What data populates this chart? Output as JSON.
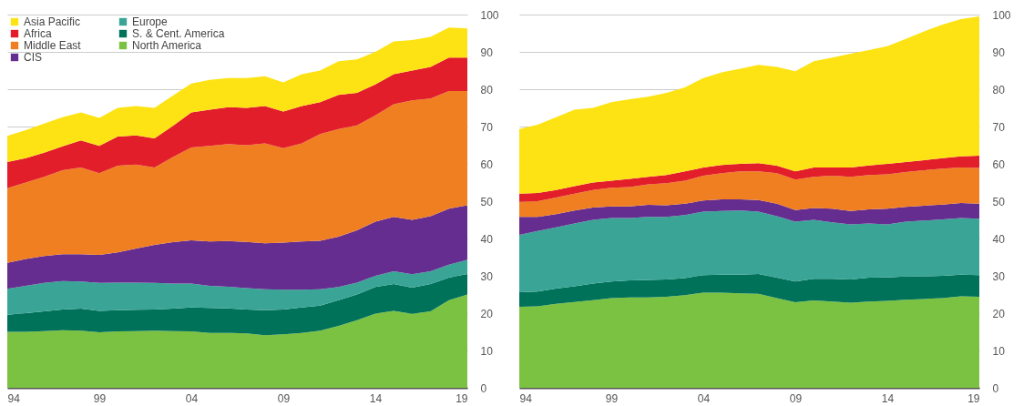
{
  "chart_data": [
    {
      "type": "area",
      "stacked": true,
      "x": [
        1994,
        1995,
        1996,
        1997,
        1998,
        1999,
        2000,
        2001,
        2002,
        2003,
        2004,
        2005,
        2006,
        2007,
        2008,
        2009,
        2010,
        2011,
        2012,
        2013,
        2014,
        2015,
        2016,
        2017,
        2018,
        2019
      ],
      "xlim": [
        1994,
        2019
      ],
      "xticks": [
        {
          "value": 1994,
          "label": "94"
        },
        {
          "value": 1999,
          "label": "99"
        },
        {
          "value": 2004,
          "label": "04"
        },
        {
          "value": 2009,
          "label": "09"
        },
        {
          "value": 2014,
          "label": "14"
        },
        {
          "value": 2019,
          "label": "19"
        }
      ],
      "ylim": [
        0,
        100
      ],
      "yticks": [
        0,
        10,
        20,
        30,
        40,
        50,
        60,
        70,
        80,
        90,
        100
      ],
      "grid": "y",
      "legend": "top left",
      "series": [
        {
          "name": "North America",
          "color": "#7cc242",
          "values": [
            15,
            15,
            15.2,
            15.4,
            15.3,
            14.9,
            15.1,
            15.2,
            15.3,
            15.2,
            15.1,
            14.7,
            14.7,
            14.6,
            14.1,
            14.3,
            14.7,
            15.3,
            16.6,
            18.1,
            19.9,
            20.6,
            19.8,
            20.5,
            23.5,
            25
          ]
        },
        {
          "name": "S. & Cent. America",
          "color": "#00725a",
          "values": [
            4.6,
            5.0,
            5.3,
            5.6,
            5.9,
            5.7,
            5.7,
            5.7,
            5.7,
            6.0,
            6.4,
            6.7,
            6.6,
            6.4,
            6.7,
            6.7,
            6.8,
            6.7,
            6.9,
            6.9,
            7.1,
            7.2,
            7.0,
            7.3,
            6.0,
            5.5
          ]
        },
        {
          "name": "Europe",
          "color": "#3aa597",
          "values": [
            6.9,
            7.3,
            7.6,
            7.6,
            7.3,
            7.5,
            7.4,
            7.3,
            7.1,
            6.7,
            6.4,
            5.9,
            5.8,
            5.7,
            5.6,
            5.3,
            4.8,
            4.4,
            3.5,
            3.2,
            3.0,
            3.4,
            3.6,
            3.4,
            3.5,
            3.8
          ]
        },
        {
          "name": "CIS",
          "color": "#662d91",
          "values": [
            7.0,
            7.2,
            7.2,
            7.2,
            7.3,
            7.5,
            8.1,
            9.1,
            10.2,
            11.1,
            11.6,
            11.9,
            12.2,
            12.4,
            12.3,
            12.6,
            12.9,
            13.0,
            13.5,
            14.0,
            14.5,
            14.6,
            14.6,
            14.8,
            15.0,
            14.6
          ]
        },
        {
          "name": "Middle East",
          "color": "#f07f22",
          "values": [
            20.0,
            20.5,
            21.2,
            22.5,
            23.2,
            21.9,
            23.2,
            22.5,
            20.7,
            22.8,
            24.9,
            25.6,
            26.0,
            25.9,
            26.8,
            25.3,
            26.3,
            28.6,
            28.8,
            28.1,
            28.5,
            30.2,
            32.0,
            31.5,
            31.5,
            30.6
          ]
        },
        {
          "name": "Africa",
          "color": "#e31e2b",
          "values": [
            7.0,
            6.5,
            6.5,
            6.4,
            7.3,
            7.3,
            7.8,
            7.8,
            7.8,
            8.4,
            9.4,
            9.7,
            9.9,
            10.0,
            10.0,
            9.8,
            10.0,
            8.5,
            9.2,
            8.7,
            8.3,
            8.0,
            8.0,
            8.5,
            9.0,
            9.0
          ]
        },
        {
          "name": "Asia Pacific",
          "color": "#fde313",
          "values": [
            7.0,
            7.5,
            7.8,
            7.8,
            7.5,
            7.5,
            7.7,
            7.9,
            8.2,
            8.1,
            7.7,
            8.0,
            7.8,
            8.0,
            8.0,
            7.8,
            8.5,
            8.5,
            9.0,
            9.0,
            8.7,
            8.8,
            8.2,
            8.0,
            8.0,
            7.8
          ]
        }
      ]
    },
    {
      "type": "area",
      "stacked": true,
      "x": [
        1994,
        1995,
        1996,
        1997,
        1998,
        1999,
        2000,
        2001,
        2002,
        2003,
        2004,
        2005,
        2006,
        2007,
        2008,
        2009,
        2010,
        2011,
        2012,
        2013,
        2014,
        2015,
        2016,
        2017,
        2018,
        2019
      ],
      "xlim": [
        1994,
        2019
      ],
      "xticks": [
        {
          "value": 1994,
          "label": "94"
        },
        {
          "value": 1999,
          "label": "99"
        },
        {
          "value": 2004,
          "label": "04"
        },
        {
          "value": 2009,
          "label": "09"
        },
        {
          "value": 2014,
          "label": "14"
        },
        {
          "value": 2019,
          "label": "19"
        }
      ],
      "ylim": [
        0,
        100
      ],
      "yticks": [
        0,
        10,
        20,
        30,
        40,
        50,
        60,
        70,
        80,
        90,
        100
      ],
      "grid": "y",
      "series": [
        {
          "color": "#7cc242",
          "values": [
            21.7,
            21.8,
            22.5,
            23,
            23.5,
            24,
            24.2,
            24.2,
            24.4,
            24.8,
            25.5,
            25.5,
            25.3,
            25.2,
            24,
            22.9,
            23.4,
            23.1,
            22.8,
            23.1,
            23.3,
            23.6,
            23.8,
            24,
            24.5,
            24.4
          ]
        },
        {
          "color": "#00725a",
          "values": [
            3.9,
            4.0,
            4.1,
            4.2,
            4.4,
            4.5,
            4.6,
            4.7,
            4.6,
            4.6,
            4.7,
            4.8,
            5.0,
            5.3,
            5.5,
            5.6,
            5.8,
            6.1,
            6.2,
            6.4,
            6.3,
            6.2,
            6.0,
            6.0,
            5.8,
            5.8
          ]
        },
        {
          "color": "#3aa597",
          "values": [
            15.4,
            16.2,
            16.4,
            16.8,
            17.1,
            17.0,
            16.7,
            16.9,
            16.8,
            16.9,
            17.0,
            17.1,
            17.2,
            16.7,
            16.5,
            16.0,
            15.8,
            15.1,
            14.8,
            14.5,
            14.2,
            14.7,
            15.0,
            15.1,
            15.2,
            15.1
          ]
        },
        {
          "color": "#662d91",
          "values": [
            4.8,
            3.8,
            3.5,
            3.5,
            3.3,
            3.1,
            3.1,
            3.2,
            3.1,
            3.0,
            3.0,
            3.1,
            3.0,
            3.1,
            3.3,
            3.1,
            3.2,
            3.7,
            3.6,
            3.8,
            4.2,
            4.0,
            4.0,
            4.0,
            4.0,
            4.0
          ]
        },
        {
          "color": "#f07f22",
          "values": [
            4.0,
            4.2,
            4.5,
            4.5,
            4.7,
            5.0,
            5.2,
            5.5,
            5.9,
            6.2,
            6.6,
            7.0,
            7.5,
            7.7,
            8.2,
            8.2,
            8.3,
            8.8,
            9.1,
            9.2,
            9.2,
            9.3,
            9.5,
            9.6,
            9.5,
            9.6
          ]
        },
        {
          "color": "#e31e2b",
          "values": [
            2.2,
            2.2,
            2.0,
            2.0,
            2.0,
            1.9,
            2.2,
            2.0,
            2.2,
            2.5,
            2.2,
            2.2,
            2.0,
            2.2,
            2.0,
            2.2,
            2.5,
            2.2,
            2.5,
            2.6,
            2.8,
            2.7,
            2.7,
            2.8,
            3.0,
            3.3
          ]
        },
        {
          "color": "#fde313",
          "values": [
            17.3,
            18.3,
            19.5,
            20.5,
            20.0,
            21.0,
            21.3,
            21.5,
            22.0,
            22.5,
            24.0,
            24.8,
            25.5,
            26.3,
            26.5,
            26.8,
            28.5,
            29.5,
            30.5,
            30.9,
            31.5,
            33.0,
            34.5,
            35.8,
            36.8,
            37.3
          ]
        }
      ]
    }
  ]
}
